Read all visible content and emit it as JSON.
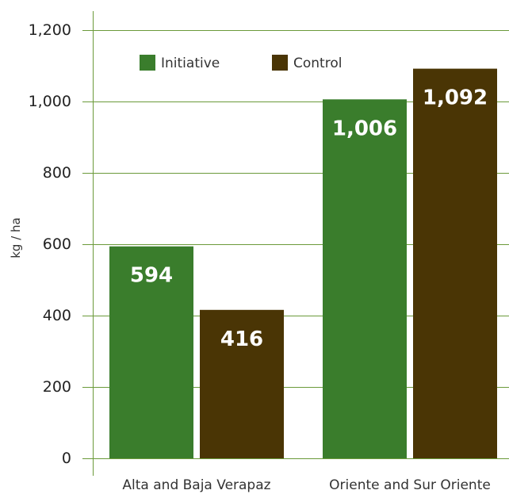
{
  "chart_data": {
    "type": "bar",
    "title": "",
    "xlabel": "",
    "ylabel": "kg / ha",
    "ylim": [
      0,
      1200
    ],
    "yticks": [
      0,
      200,
      400,
      600,
      800,
      1000,
      1200
    ],
    "ytick_labels": [
      "0",
      "200",
      "400",
      "600",
      "800",
      "1,000",
      "1,200"
    ],
    "grid": true,
    "legend_position": "top",
    "categories": [
      "Alta and Baja Verapaz",
      "Oriente and Sur Oriente"
    ],
    "series": [
      {
        "name": "Initiative",
        "color": "#3a7d2c",
        "values": [
          594,
          1006
        ],
        "labels": [
          "594",
          "1,006"
        ]
      },
      {
        "name": "Control",
        "color": "#4a3505",
        "values": [
          416,
          1092
        ],
        "labels": [
          "416",
          "1,092"
        ]
      }
    ],
    "gridline_color": "#6b9a3a"
  }
}
